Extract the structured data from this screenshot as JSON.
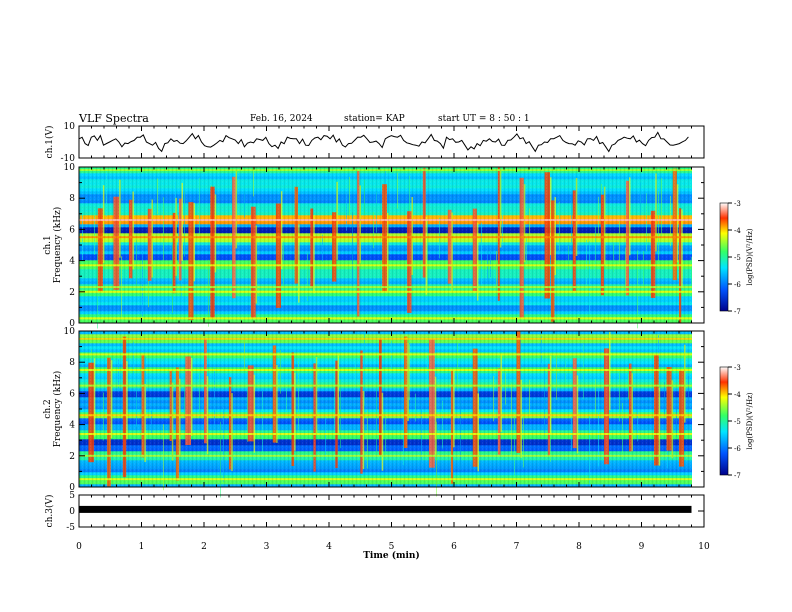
{
  "header": {
    "title": "VLF Spectra",
    "date": "Feb. 16, 2024",
    "station": "station= KAP",
    "start": "start  UT  =   8  : 50 : 1"
  },
  "chart_data": [
    {
      "type": "line",
      "ylabel": "ch.1(V)",
      "ylim": [
        -10,
        10
      ],
      "yticks": [
        "10",
        "-10"
      ],
      "xlim": [
        0,
        10
      ],
      "series": [
        {
          "values_description_note": "",
          "x_step": 0.1,
          "values": [
            2,
            -1,
            3,
            1,
            -2,
            0,
            2,
            -3,
            -1,
            1,
            3,
            0,
            -2,
            -4,
            -1,
            2,
            1,
            -1,
            3,
            2,
            0,
            -3,
            -2,
            1,
            4,
            2,
            -1,
            -3,
            0,
            2,
            1,
            -1,
            -2,
            0,
            3,
            2,
            -1,
            -2,
            1,
            3,
            4,
            2,
            0,
            -2,
            -1,
            1,
            3,
            2,
            0,
            -1,
            2,
            4,
            3,
            1,
            -1,
            -2,
            0,
            2,
            1,
            -1,
            3,
            2,
            0,
            -2,
            -3,
            -1,
            1,
            2,
            0,
            -2,
            1,
            3,
            2,
            -1,
            -3,
            -2,
            0,
            2,
            3,
            1,
            -1,
            -2,
            0,
            2,
            1,
            -1,
            -3,
            -2,
            1,
            3,
            2,
            0,
            -1,
            1,
            3,
            2,
            0,
            -2,
            -1,
            1
          ]
        }
      ]
    },
    {
      "type": "heatmap",
      "ylabel": "ch.1\nFrequency (kHz)",
      "ylim": [
        0,
        10
      ],
      "yticks": [
        "0",
        "2",
        "4",
        "6",
        "8",
        "10"
      ],
      "xlim": [
        0,
        10
      ],
      "colorbar": {
        "label": "log(PSD)(V²/Hz)",
        "range": [
          -7,
          -3
        ],
        "ticks": [
          "-3",
          "-4",
          "-5",
          "-6",
          "-7"
        ]
      },
      "bands_khz": [
        {
          "f": 0.3,
          "level": 0.55
        },
        {
          "f": 1.0,
          "level": 0.3
        },
        {
          "f": 2.0,
          "level": 0.55
        },
        {
          "f": 2.3,
          "level": 0.5
        },
        {
          "f": 3.2,
          "level": 0.45
        },
        {
          "f": 3.7,
          "level": 0.55
        },
        {
          "f": 4.2,
          "level": 0.2
        },
        {
          "f": 4.8,
          "level": 0.3
        },
        {
          "f": 5.5,
          "level": 0.65
        },
        {
          "f": 6.0,
          "level": 0.1
        },
        {
          "f": 6.6,
          "level": 0.8
        },
        {
          "f": 7.2,
          "level": 0.45
        },
        {
          "f": 8.0,
          "level": 0.3
        },
        {
          "f": 9.0,
          "level": 0.4
        },
        {
          "f": 9.8,
          "level": 0.5
        }
      ],
      "bursts_min": [
        0.3,
        0.55,
        0.8,
        1.1,
        1.5,
        1.6,
        1.75,
        2.1,
        2.45,
        2.75,
        3.15,
        3.45,
        3.7,
        4.05,
        4.45,
        4.85,
        5.25,
        5.5,
        5.9,
        6.3,
        6.7,
        7.05,
        7.45,
        7.55,
        7.9,
        8.35,
        8.75,
        9.15,
        9.5,
        9.6
      ]
    },
    {
      "type": "heatmap",
      "ylabel": "ch.2\nFrequency (kHz)",
      "ylim": [
        0,
        10
      ],
      "yticks": [
        "0",
        "2",
        "4",
        "6",
        "8",
        "10"
      ],
      "xlim": [
        0,
        10
      ],
      "colorbar": {
        "label": "log(PSD)(V²/Hz)",
        "range": [
          -7,
          -3
        ],
        "ticks": [
          "-3",
          "-4",
          "-5",
          "-6",
          "-7"
        ]
      },
      "bands_khz": [
        {
          "f": 0.5,
          "level": 0.55
        },
        {
          "f": 1.3,
          "level": 0.3
        },
        {
          "f": 2.0,
          "level": 0.5
        },
        {
          "f": 2.5,
          "level": 0.2
        },
        {
          "f": 3.0,
          "level": 0.15
        },
        {
          "f": 3.4,
          "level": 0.55
        },
        {
          "f": 4.2,
          "level": 0.2
        },
        {
          "f": 4.6,
          "level": 0.6
        },
        {
          "f": 5.3,
          "level": 0.3
        },
        {
          "f": 6.0,
          "level": 0.15
        },
        {
          "f": 6.5,
          "level": 0.5
        },
        {
          "f": 7.5,
          "level": 0.55
        },
        {
          "f": 8.5,
          "level": 0.55
        },
        {
          "f": 9.5,
          "level": 0.6
        }
      ],
      "bursts_min": [
        0.15,
        0.45,
        0.7,
        1.0,
        1.45,
        1.55,
        1.7,
        2.0,
        2.4,
        2.7,
        3.1,
        3.4,
        3.75,
        4.1,
        4.5,
        4.8,
        5.2,
        5.6,
        5.95,
        6.3,
        6.7,
        7.0,
        7.5,
        7.9,
        8.4,
        8.8,
        9.2,
        9.4,
        9.6
      ]
    },
    {
      "type": "line",
      "ylabel": "ch.3(V)",
      "ylim": [
        -5,
        5
      ],
      "yticks": [
        "5",
        "0",
        "-5"
      ],
      "xlim": [
        0,
        10
      ],
      "series": [
        {
          "x": [
            0,
            9.8
          ],
          "values": [
            0.5,
            0.5
          ]
        }
      ]
    }
  ],
  "xaxis": {
    "label": "Time  (min)",
    "ticks": [
      "0",
      "1",
      "2",
      "3",
      "4",
      "5",
      "6",
      "7",
      "8",
      "9",
      "10"
    ]
  }
}
